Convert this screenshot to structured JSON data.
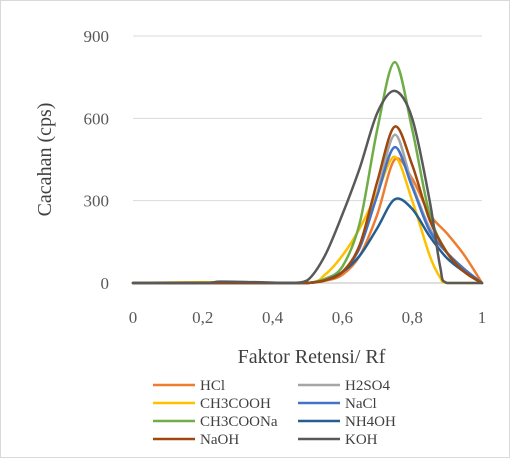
{
  "chart_data": {
    "type": "line",
    "title": "",
    "xlabel": "Faktor Retensi/ Rf",
    "ylabel": "Cacahan (cps)",
    "xlim": [
      0,
      1
    ],
    "ylim": [
      0,
      900
    ],
    "x_ticks": [
      0,
      0.2,
      0.4,
      0.6,
      0.8,
      1
    ],
    "x_tick_labels": [
      "0",
      "0,2",
      "0,4",
      "0,6",
      "0,8",
      "1"
    ],
    "y_ticks": [
      0,
      300,
      600,
      900
    ],
    "y_tick_labels": [
      "0",
      "300",
      "600",
      "900"
    ],
    "grid": "horizontal",
    "legend_position": "bottom",
    "series": [
      {
        "name": "HCl",
        "color": "#ed7d31",
        "points": [
          [
            0,
            0
          ],
          [
            0.2,
            0
          ],
          [
            0.45,
            0
          ],
          [
            0.5,
            0
          ],
          [
            0.55,
            8
          ],
          [
            0.6,
            30
          ],
          [
            0.65,
            100
          ],
          [
            0.7,
            250
          ],
          [
            0.75,
            450
          ],
          [
            0.8,
            380
          ],
          [
            0.85,
            250
          ],
          [
            0.9,
            180
          ],
          [
            0.95,
            100
          ],
          [
            1,
            0
          ]
        ]
      },
      {
        "name": "H2SO4",
        "color": "#a5a5a5",
        "points": [
          [
            0,
            0
          ],
          [
            0.2,
            0
          ],
          [
            0.45,
            0
          ],
          [
            0.5,
            0
          ],
          [
            0.55,
            10
          ],
          [
            0.6,
            40
          ],
          [
            0.65,
            130
          ],
          [
            0.7,
            330
          ],
          [
            0.75,
            540
          ],
          [
            0.8,
            360
          ],
          [
            0.85,
            200
          ],
          [
            0.9,
            110
          ],
          [
            0.95,
            50
          ],
          [
            1,
            0
          ]
        ]
      },
      {
        "name": "CH3COOH",
        "color": "#ffc000",
        "points": [
          [
            0,
            0
          ],
          [
            0.2,
            3
          ],
          [
            0.3,
            0
          ],
          [
            0.5,
            0
          ],
          [
            0.55,
            30
          ],
          [
            0.6,
            100
          ],
          [
            0.65,
            200
          ],
          [
            0.7,
            330
          ],
          [
            0.75,
            460
          ],
          [
            0.8,
            300
          ],
          [
            0.85,
            100
          ],
          [
            0.88,
            20
          ],
          [
            0.9,
            0
          ],
          [
            1,
            0
          ]
        ]
      },
      {
        "name": "NaCl",
        "color": "#4472c4",
        "points": [
          [
            0,
            0
          ],
          [
            0.45,
            0
          ],
          [
            0.5,
            0
          ],
          [
            0.55,
            10
          ],
          [
            0.6,
            40
          ],
          [
            0.65,
            130
          ],
          [
            0.7,
            320
          ],
          [
            0.75,
            495
          ],
          [
            0.8,
            350
          ],
          [
            0.85,
            190
          ],
          [
            0.9,
            110
          ],
          [
            0.95,
            50
          ],
          [
            1,
            0
          ]
        ]
      },
      {
        "name": "CH3COONa",
        "color": "#70ad47",
        "points": [
          [
            0,
            0
          ],
          [
            0.45,
            0
          ],
          [
            0.5,
            0
          ],
          [
            0.55,
            15
          ],
          [
            0.6,
            60
          ],
          [
            0.65,
            220
          ],
          [
            0.7,
            560
          ],
          [
            0.75,
            805
          ],
          [
            0.8,
            560
          ],
          [
            0.85,
            250
          ],
          [
            0.9,
            110
          ],
          [
            0.95,
            40
          ],
          [
            1,
            0
          ]
        ]
      },
      {
        "name": "NH4OH",
        "color": "#255e91",
        "points": [
          [
            0,
            0
          ],
          [
            0.45,
            0
          ],
          [
            0.5,
            0
          ],
          [
            0.55,
            10
          ],
          [
            0.6,
            40
          ],
          [
            0.65,
            100
          ],
          [
            0.7,
            200
          ],
          [
            0.75,
            305
          ],
          [
            0.8,
            270
          ],
          [
            0.85,
            170
          ],
          [
            0.9,
            90
          ],
          [
            0.95,
            40
          ],
          [
            1,
            0
          ]
        ]
      },
      {
        "name": "NaOH",
        "color": "#9e480e",
        "points": [
          [
            0,
            0
          ],
          [
            0.45,
            0
          ],
          [
            0.5,
            0
          ],
          [
            0.55,
            10
          ],
          [
            0.6,
            40
          ],
          [
            0.65,
            140
          ],
          [
            0.7,
            370
          ],
          [
            0.75,
            570
          ],
          [
            0.8,
            430
          ],
          [
            0.85,
            230
          ],
          [
            0.9,
            110
          ],
          [
            0.95,
            40
          ],
          [
            1,
            0
          ]
        ]
      },
      {
        "name": "KOH",
        "color": "#595959",
        "points": [
          [
            0,
            0
          ],
          [
            0.2,
            0
          ],
          [
            0.25,
            5
          ],
          [
            0.35,
            3
          ],
          [
            0.45,
            0
          ],
          [
            0.5,
            10
          ],
          [
            0.55,
            100
          ],
          [
            0.6,
            250
          ],
          [
            0.65,
            420
          ],
          [
            0.7,
            620
          ],
          [
            0.75,
            700
          ],
          [
            0.8,
            600
          ],
          [
            0.85,
            300
          ],
          [
            0.88,
            60
          ],
          [
            0.9,
            0
          ],
          [
            1,
            0
          ]
        ]
      }
    ]
  }
}
